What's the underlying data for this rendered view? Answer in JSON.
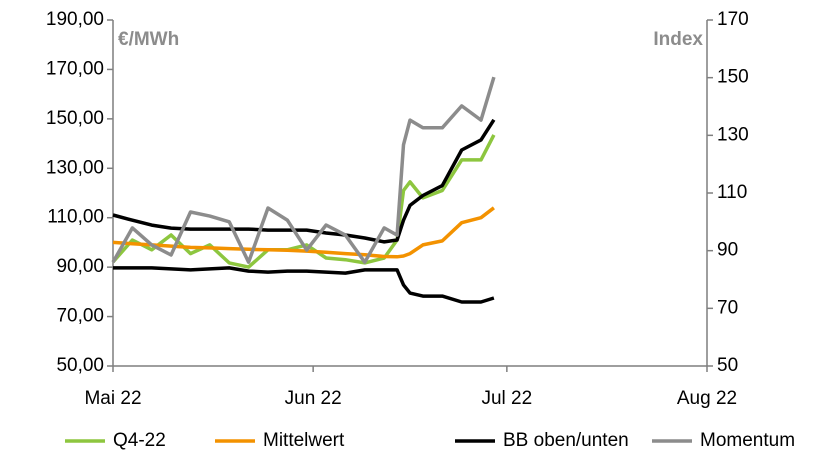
{
  "chart_data": {
    "type": "line",
    "y_label": "€/MWh",
    "y2_label": "Index",
    "xlim": [
      0,
      92
    ],
    "xticks": [
      {
        "value": 0,
        "label": "Mai 22"
      },
      {
        "value": 31,
        "label": "Jun 22"
      },
      {
        "value": 61,
        "label": "Jul 22"
      },
      {
        "value": 92,
        "label": "Aug 22"
      }
    ],
    "ylim": [
      50,
      190
    ],
    "yticks": [
      {
        "value": 50,
        "label": "50,00"
      },
      {
        "value": 70,
        "label": "70,00"
      },
      {
        "value": 90,
        "label": "90,00"
      },
      {
        "value": 110,
        "label": "110,00"
      },
      {
        "value": 130,
        "label": "130,00"
      },
      {
        "value": 150,
        "label": "150,00"
      },
      {
        "value": 170,
        "label": "170,00"
      },
      {
        "value": 190,
        "label": "190,00"
      }
    ],
    "y2lim": [
      50,
      170
    ],
    "y2ticks": [
      50,
      70,
      90,
      110,
      130,
      150,
      170
    ],
    "x": [
      0,
      3,
      6,
      9,
      12,
      15,
      18,
      21,
      24,
      27,
      30,
      33,
      36,
      39,
      42,
      44,
      45,
      46,
      48,
      51,
      54,
      57,
      59
    ],
    "series": [
      {
        "name": "Q4-22",
        "color": "#8dc63f",
        "values": [
          92.1,
          101,
          97,
          103,
          95.5,
          99,
          91.7,
          90,
          97,
          97,
          99,
          93.7,
          93,
          91.7,
          93.7,
          101,
          121,
          124.5,
          118,
          121,
          133.4,
          133.4,
          143.5
        ]
      },
      {
        "name": "Mittelwert",
        "color": "#f39200",
        "values": [
          100,
          99.5,
          99,
          98.5,
          98,
          97.8,
          97.5,
          97.2,
          97,
          96.8,
          96.5,
          96,
          95.5,
          95,
          94.3,
          94.2,
          94.5,
          95.5,
          99,
          100.6,
          108,
          110,
          114
        ]
      },
      {
        "name": "BB oben/unten",
        "color": "#000000",
        "values": [
          111.1,
          109,
          107,
          105.8,
          105.4,
          105.4,
          105.4,
          105.4,
          105,
          105,
          105,
          103.8,
          103,
          101.8,
          100.2,
          101,
          109,
          115,
          119,
          123,
          137.4,
          141.5,
          149.6
        ],
        "lower": [
          89.7,
          89.7,
          89.7,
          89.3,
          88.9,
          89.3,
          89.7,
          88.4,
          88,
          88.4,
          88.4,
          88,
          87.6,
          88.9,
          88.9,
          88.9,
          82.8,
          79.5,
          78.3,
          78.3,
          75.9,
          75.9,
          77.5
        ]
      },
      {
        "name": "Momentum",
        "color": "#8c8c8c",
        "axis": "y2",
        "values": [
          86,
          97.9,
          92,
          88.5,
          103.4,
          102,
          100,
          86,
          104.8,
          100.6,
          90.2,
          98.9,
          95.4,
          86,
          97.9,
          95.4,
          126.7,
          135.3,
          132.6,
          132.6,
          140.2,
          135.3,
          150.2
        ]
      }
    ]
  }
}
